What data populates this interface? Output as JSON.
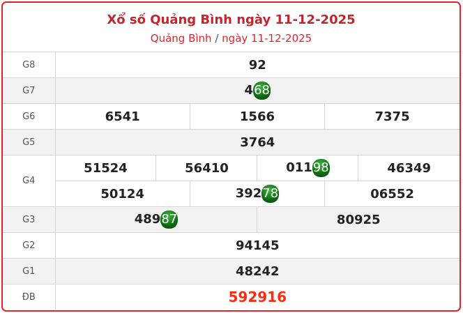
{
  "header": {
    "title": "Xổ số Quảng Bình ngày 11-12-2025",
    "breadcrumb_region": "Quảng Bình",
    "breadcrumb_sep": "/",
    "breadcrumb_date": "ngày 11-12-2025"
  },
  "colors": {
    "accent": "#e3232c",
    "special_prize": "#ff2a0f",
    "highlight_ball": "#1a8a1e"
  },
  "prizes": [
    {
      "label": "G8",
      "rows": [
        [
          {
            "value": "92",
            "highlight": false
          }
        ]
      ]
    },
    {
      "label": "G7",
      "rows": [
        [
          {
            "value": "468",
            "highlight": true
          }
        ]
      ]
    },
    {
      "label": "G6",
      "rows": [
        [
          {
            "value": "6541",
            "highlight": false
          },
          {
            "value": "1566",
            "highlight": false
          },
          {
            "value": "7375",
            "highlight": false
          }
        ]
      ]
    },
    {
      "label": "G5",
      "rows": [
        [
          {
            "value": "3764",
            "highlight": false
          }
        ]
      ]
    },
    {
      "label": "G4",
      "rows": [
        [
          {
            "value": "51524",
            "highlight": false
          },
          {
            "value": "56410",
            "highlight": false
          },
          {
            "value": "01198",
            "highlight": true
          },
          {
            "value": "46349",
            "highlight": false
          }
        ],
        [
          {
            "value": "50124",
            "highlight": false
          },
          {
            "value": "39278",
            "highlight": true
          },
          {
            "value": "06552",
            "highlight": false
          }
        ]
      ]
    },
    {
      "label": "G3",
      "rows": [
        [
          {
            "value": "48987",
            "highlight": true
          },
          {
            "value": "80925",
            "highlight": false
          }
        ]
      ]
    },
    {
      "label": "G2",
      "rows": [
        [
          {
            "value": "94145",
            "highlight": false
          }
        ]
      ]
    },
    {
      "label": "G1",
      "rows": [
        [
          {
            "value": "48242",
            "highlight": false
          }
        ]
      ]
    },
    {
      "label": "ĐB",
      "special": true,
      "rows": [
        [
          {
            "value": "592916",
            "highlight": false
          }
        ]
      ]
    }
  ]
}
